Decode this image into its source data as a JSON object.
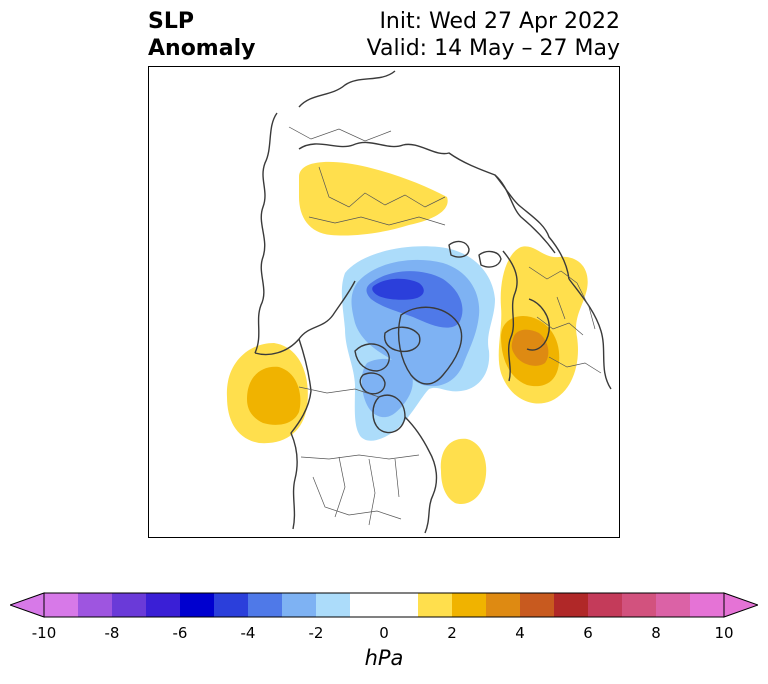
{
  "header": {
    "title_line1": "SLP",
    "title_line2": "Anomaly",
    "init": "Init: Wed 27 Apr 2022",
    "valid": "Valid: 14 May – 27 May"
  },
  "colorbar": {
    "unit": "hPa",
    "bins": [
      {
        "from": -10,
        "to": -9,
        "color": "#d779e8"
      },
      {
        "from": -9,
        "to": -8,
        "color": "#9e55e0"
      },
      {
        "from": -8,
        "to": -7,
        "color": "#6a3ad8"
      },
      {
        "from": -7,
        "to": -6,
        "color": "#3a1fd6"
      },
      {
        "from": -6,
        "to": -5,
        "color": "#0000cf"
      },
      {
        "from": -5,
        "to": -4,
        "color": "#2b3fdb"
      },
      {
        "from": -4,
        "to": -3,
        "color": "#4f79e8"
      },
      {
        "from": -3,
        "to": -2,
        "color": "#7eb2f3"
      },
      {
        "from": -2,
        "to": -1,
        "color": "#acdcfa"
      },
      {
        "from": -1,
        "to": 1,
        "color": "#ffffff"
      },
      {
        "from": 1,
        "to": 2,
        "color": "#ffdf4d"
      },
      {
        "from": 2,
        "to": 3,
        "color": "#f0b300"
      },
      {
        "from": 3,
        "to": 4,
        "color": "#de8a12"
      },
      {
        "from": 4,
        "to": 5,
        "color": "#c85a1f"
      },
      {
        "from": 5,
        "to": 6,
        "color": "#b02828"
      },
      {
        "from": 6,
        "to": 7,
        "color": "#c43b5a"
      },
      {
        "from": 7,
        "to": 8,
        "color": "#d2527e"
      },
      {
        "from": 8,
        "to": 9,
        "color": "#db62a6"
      },
      {
        "from": 9,
        "to": 10,
        "color": "#e573d6"
      }
    ],
    "under_color": "#d779e8",
    "over_color": "#e573d6",
    "ticks": [
      -10,
      -8,
      -6,
      -4,
      -2,
      0,
      2,
      4,
      6,
      8,
      10
    ]
  },
  "map": {
    "projection": "polar stereographic, North America / Arctic",
    "coastline_color": "#3a3a3a",
    "anomalies": [
      {
        "region": "northern-siberia",
        "peak_hpa": 1.5,
        "sign": "positive"
      },
      {
        "region": "gulf-of-alaska",
        "peak_hpa": 2.5,
        "sign": "positive"
      },
      {
        "region": "western-atlantic",
        "peak_hpa": 1.5,
        "sign": "positive"
      },
      {
        "region": "scandinavia-northern-europe",
        "peak_hpa": 3.5,
        "sign": "positive"
      },
      {
        "region": "arctic-ocean-greenland",
        "peak_hpa": -4,
        "sign": "negative"
      },
      {
        "region": "canada-hudson-bay",
        "peak_hpa": -3,
        "sign": "negative"
      }
    ]
  }
}
